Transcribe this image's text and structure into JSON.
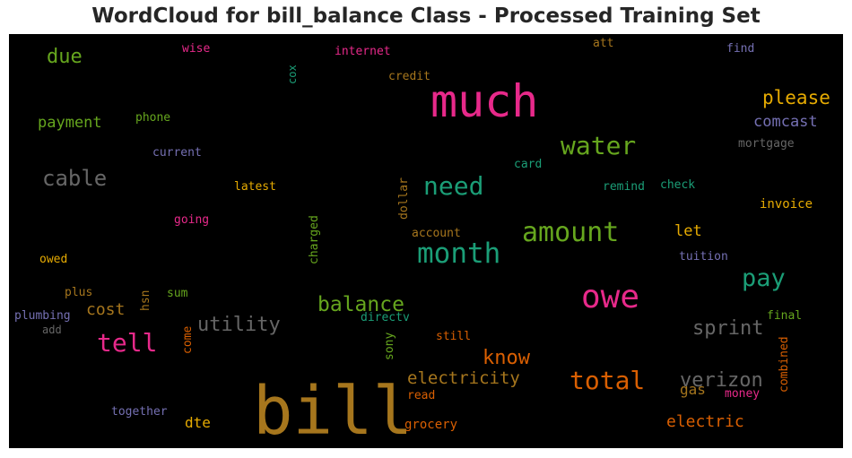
{
  "chart_data": {
    "type": "wordcloud",
    "title": "WordCloud for bill_balance Class - Processed Training Set",
    "background": "#000000",
    "words": [
      {
        "text": "bill",
        "color": "#a6761d"
      },
      {
        "text": "much",
        "color": "#e7298a"
      },
      {
        "text": "owe",
        "color": "#e7298a"
      },
      {
        "text": "month",
        "color": "#1b9e77"
      },
      {
        "text": "amount",
        "color": "#66a61e"
      },
      {
        "text": "water",
        "color": "#66a61e"
      },
      {
        "text": "need",
        "color": "#1b9e77"
      },
      {
        "text": "total",
        "color": "#d95f02"
      },
      {
        "text": "tell",
        "color": "#e7298a"
      },
      {
        "text": "pay",
        "color": "#1b9e77"
      },
      {
        "text": "cable",
        "color": "#666666"
      },
      {
        "text": "balance",
        "color": "#66a61e"
      },
      {
        "text": "utility",
        "color": "#666666"
      },
      {
        "text": "verizon",
        "color": "#666666"
      },
      {
        "text": "sprint",
        "color": "#666666"
      },
      {
        "text": "please",
        "color": "#e6ab02"
      },
      {
        "text": "electricity",
        "color": "#a6761d"
      },
      {
        "text": "know",
        "color": "#d95f02"
      },
      {
        "text": "electric",
        "color": "#d95f02"
      },
      {
        "text": "comcast",
        "color": "#7570b3"
      },
      {
        "text": "due",
        "color": "#66a61e"
      },
      {
        "text": "payment",
        "color": "#66a61e"
      },
      {
        "text": "cost",
        "color": "#a6761d"
      },
      {
        "text": "gas",
        "color": "#a6761d"
      },
      {
        "text": "let",
        "color": "#e6ab02"
      },
      {
        "text": "dte",
        "color": "#e6ab02"
      },
      {
        "text": "mortgage",
        "color": "#666666"
      },
      {
        "text": "invoice",
        "color": "#e6ab02"
      },
      {
        "text": "tuition",
        "color": "#7570b3"
      },
      {
        "text": "combined",
        "color": "#d95f02"
      },
      {
        "text": "money",
        "color": "#e7298a"
      },
      {
        "text": "final",
        "color": "#66a61e"
      },
      {
        "text": "grocery",
        "color": "#d95f02"
      },
      {
        "text": "read",
        "color": "#d95f02"
      },
      {
        "text": "still",
        "color": "#d95f02"
      },
      {
        "text": "directv",
        "color": "#1b9e77"
      },
      {
        "text": "sony",
        "color": "#66a61e"
      },
      {
        "text": "together",
        "color": "#7570b3"
      },
      {
        "text": "plumbing",
        "color": "#7570b3"
      },
      {
        "text": "add",
        "color": "#666666"
      },
      {
        "text": "plus",
        "color": "#a6761d"
      },
      {
        "text": "hsn",
        "color": "#a6761d"
      },
      {
        "text": "sum",
        "color": "#66a61e"
      },
      {
        "text": "come",
        "color": "#d95f02"
      },
      {
        "text": "owed",
        "color": "#e6ab02"
      },
      {
        "text": "going",
        "color": "#e7298a"
      },
      {
        "text": "latest",
        "color": "#e6ab02"
      },
      {
        "text": "current",
        "color": "#7570b3"
      },
      {
        "text": "phone",
        "color": "#66a61e"
      },
      {
        "text": "wise",
        "color": "#e7298a"
      },
      {
        "text": "internet",
        "color": "#e7298a"
      },
      {
        "text": "cox",
        "color": "#1b9e77"
      },
      {
        "text": "credit",
        "color": "#a6761d"
      },
      {
        "text": "att",
        "color": "#a6761d"
      },
      {
        "text": "find",
        "color": "#7570b3"
      },
      {
        "text": "card",
        "color": "#1b9e77"
      },
      {
        "text": "remind",
        "color": "#1b9e77"
      },
      {
        "text": "check",
        "color": "#1b9e77"
      },
      {
        "text": "account",
        "color": "#a6761d"
      },
      {
        "text": "dollar",
        "color": "#a6761d"
      },
      {
        "text": "charged",
        "color": "#66a61e"
      }
    ]
  }
}
